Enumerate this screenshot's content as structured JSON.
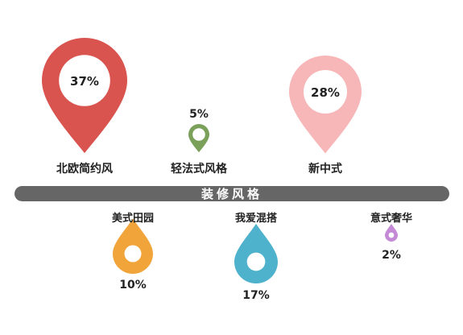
{
  "chart_data": {
    "type": "pie",
    "title": "装修风格",
    "unit": "%",
    "categories": [
      "北欧简约风",
      "轻法式风格",
      "新中式",
      "美式田园",
      "我爱混搭",
      "意式奢华"
    ],
    "values": [
      37,
      5,
      28,
      10,
      17,
      2
    ],
    "value_labels": [
      "37%",
      "5%",
      "28%",
      "10%",
      "17%",
      "2%"
    ],
    "colors": [
      "#d9534f",
      "#7aa05a",
      "#f7b6b8",
      "#f0a43a",
      "#4fb2cc",
      "#c48ad6"
    ],
    "divider_color": "#666666",
    "title_color": "#ffffff"
  }
}
